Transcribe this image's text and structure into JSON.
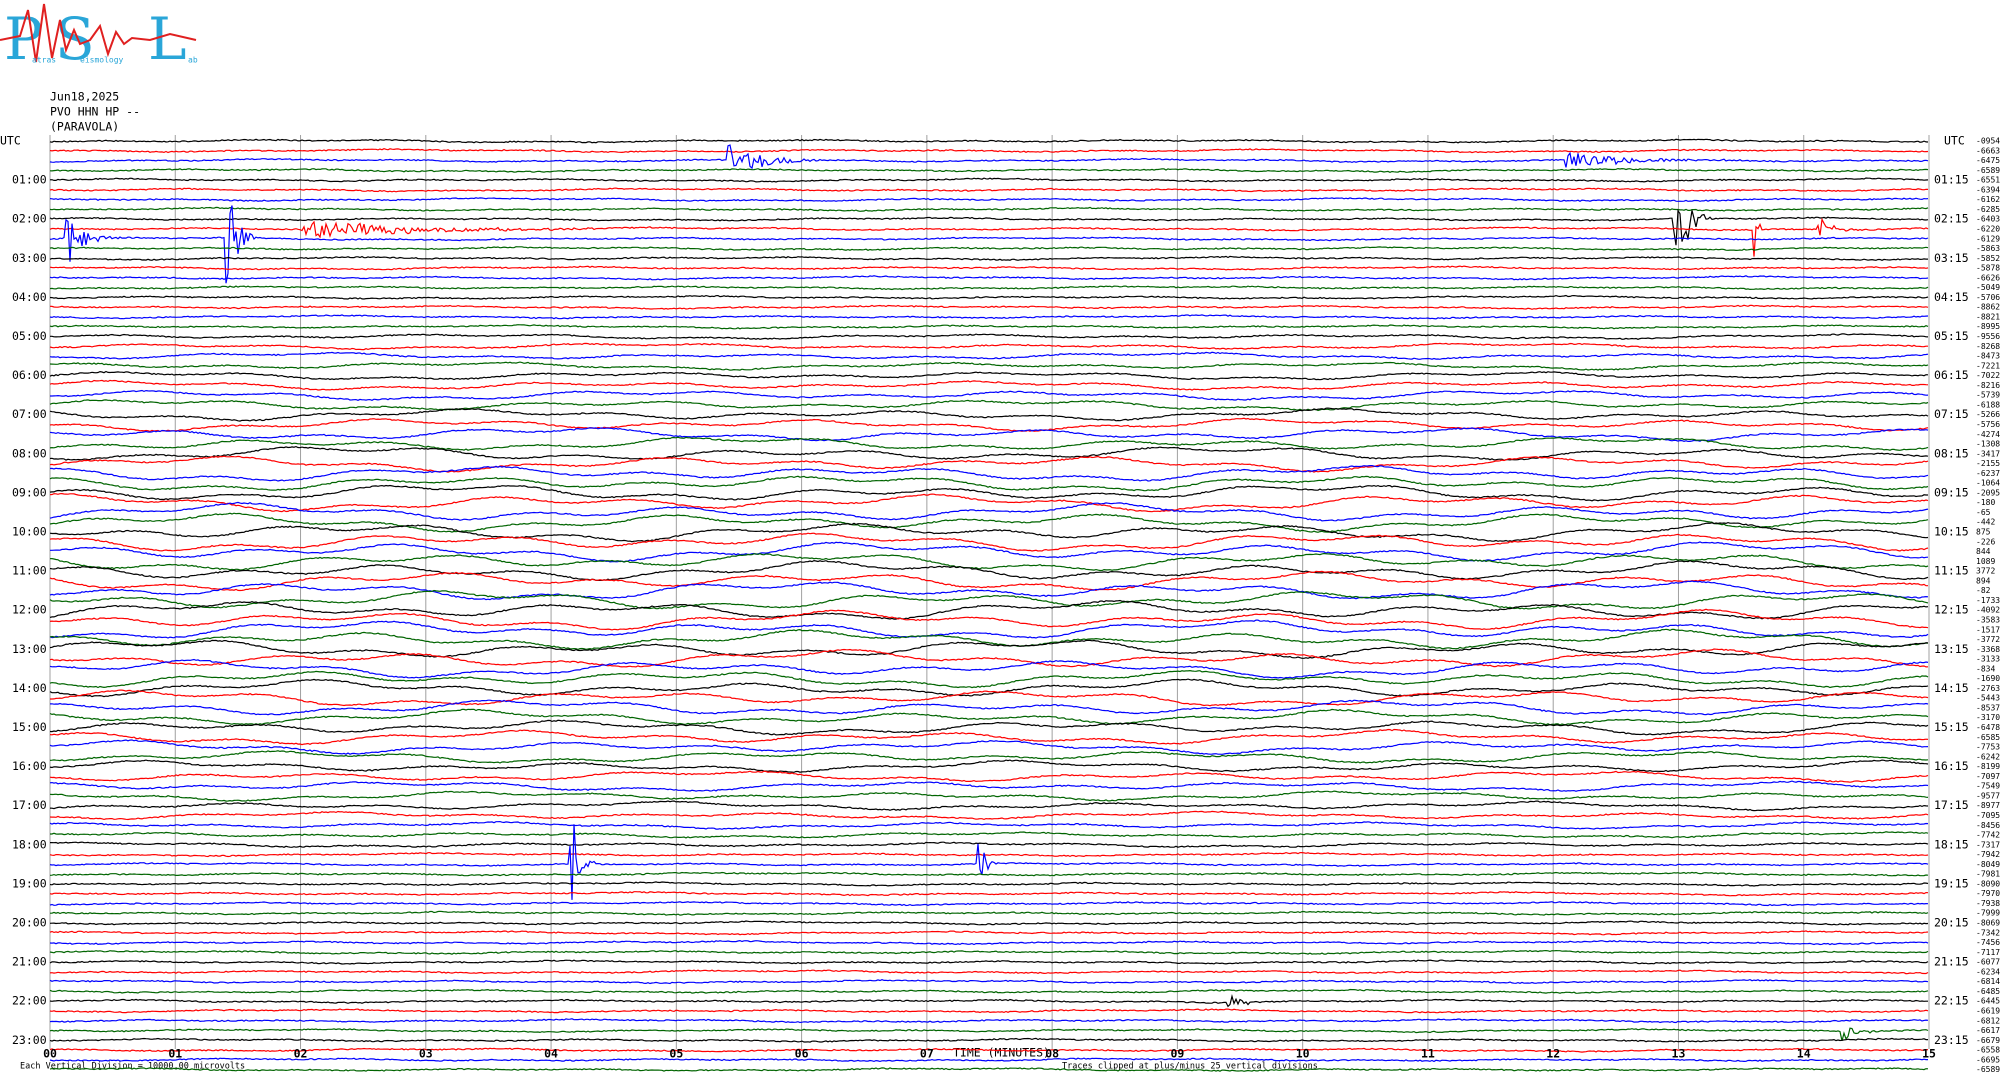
{
  "logo": {
    "letters": [
      "P",
      "S",
      "L"
    ],
    "small": [
      "atras",
      "eismology",
      "ab"
    ]
  },
  "chart_data": {
    "type": "helicorder",
    "title": [
      "Jun18,2025",
      "PVO HHN HP --",
      "(PARAVOLA)"
    ],
    "utc_label": "UTC",
    "left_labels": [
      "01:00",
      "02:00",
      "03:00",
      "04:00",
      "05:00",
      "06:00",
      "07:00",
      "08:00",
      "09:00",
      "10:00",
      "11:00",
      "12:00",
      "13:00",
      "14:00",
      "15:00",
      "16:00",
      "17:00",
      "18:00",
      "19:00",
      "20:00",
      "21:00",
      "22:00",
      "23:00"
    ],
    "right_labels": [
      "01:15",
      "02:15",
      "03:15",
      "04:15",
      "05:15",
      "06:15",
      "07:15",
      "08:15",
      "09:15",
      "10:15",
      "11:15",
      "12:15",
      "13:15",
      "14:15",
      "15:15",
      "16:15",
      "17:15",
      "18:15",
      "19:15",
      "20:15",
      "21:15",
      "22:15",
      "23:15"
    ],
    "offsets": [
      "-0954",
      "-6663",
      "-6475",
      "-6589",
      "-6551",
      "-6394",
      "-6162",
      "-6285",
      "-6403",
      "-6220",
      "-6129",
      "-5863",
      "-5852",
      "-5878",
      "-6626",
      "-5049",
      "-5706",
      "-8862",
      "-8821",
      "-8995",
      "-9556",
      "-8268",
      "-8473",
      "-7221",
      "-7022",
      "-8216",
      "-5739",
      "-6188",
      "-5266",
      "-5756",
      "-4274",
      "-1308",
      "-3417",
      "-2155",
      "-6237",
      "-1064",
      "-2095",
      "-180",
      "-65",
      "-442",
      "875",
      "-226",
      "844",
      "1089",
      "3772",
      "894",
      "-82",
      "-1733",
      "-4092",
      "-3583",
      "-1517",
      "-3772",
      "-3368",
      "-3133",
      "-834",
      "-1690",
      "-2763",
      "-5443",
      "-8537",
      "-3170",
      "-6478",
      "-6585",
      "-7753",
      "-6242",
      "-8199",
      "-7097",
      "-7549",
      "-9577",
      "-8977",
      "-7095",
      "-8456",
      "-7742",
      "-7317",
      "-7942",
      "-8049",
      "-7981",
      "-8090",
      "-7970",
      "-7938",
      "-7999",
      "-8069",
      "-7342",
      "-7456",
      "-7117",
      "-6077",
      "-6234",
      "-6814",
      "-6485",
      "-6445",
      "-6619",
      "-6812",
      "-6617",
      "-6679",
      "-6558",
      "-6695",
      "-6589"
    ],
    "trace_colors": [
      "#000000",
      "#ff0000",
      "#0000ff",
      "#006400"
    ],
    "xlim": [
      0,
      15
    ],
    "xticks": [
      {
        "value": 0,
        "label": "00"
      },
      {
        "value": 1,
        "label": "01"
      },
      {
        "value": 2,
        "label": "02"
      },
      {
        "value": 3,
        "label": "03"
      },
      {
        "value": 4,
        "label": "04"
      },
      {
        "value": 5,
        "label": "05"
      },
      {
        "value": 6,
        "label": "06"
      },
      {
        "value": 7,
        "label": "07"
      },
      {
        "value": 8,
        "label": "08"
      },
      {
        "value": 9,
        "label": "09"
      },
      {
        "value": 10,
        "label": "10"
      },
      {
        "value": 11,
        "label": "11"
      },
      {
        "value": 12,
        "label": "12"
      },
      {
        "value": 13,
        "label": "13"
      },
      {
        "value": 14,
        "label": "14"
      },
      {
        "value": 15,
        "label": "15"
      }
    ],
    "grid": true,
    "x_label": "TIME (MINUTES)",
    "clip_note": "Traces clipped at plus/minus 25 vertical divisions",
    "scale_note": "Each Vertical Division = 10000.00 microvolts"
  }
}
